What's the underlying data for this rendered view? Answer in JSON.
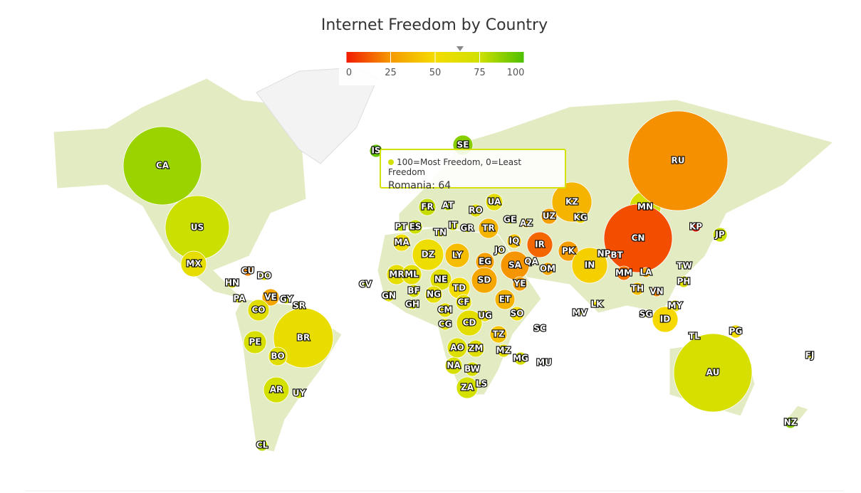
{
  "title": "Internet Freedom by Country",
  "legend": {
    "min": 0,
    "max": 100,
    "ticks": [
      0,
      25,
      50,
      75,
      100
    ],
    "colors": [
      "#f21a00",
      "#f59a00",
      "#f5dc00",
      "#d0e000",
      "#4cbf00"
    ]
  },
  "tooltip": {
    "series": "100=Most Freedom, 0=Least Freedom",
    "label": "Romania: 64",
    "value": 64
  },
  "countries": [
    {
      "code": "CA",
      "value": 85
    },
    {
      "code": "US",
      "value": 76
    },
    {
      "code": "MX",
      "value": 61
    },
    {
      "code": "CU",
      "value": 21
    },
    {
      "code": "DO",
      "value": 70
    },
    {
      "code": "HN",
      "value": 62
    },
    {
      "code": "PA",
      "value": 70
    },
    {
      "code": "VE",
      "value": 30
    },
    {
      "code": "GY",
      "value": 72
    },
    {
      "code": "SR",
      "value": 78
    },
    {
      "code": "CO",
      "value": 64
    },
    {
      "code": "BR",
      "value": 58
    },
    {
      "code": "PE",
      "value": 70
    },
    {
      "code": "BO",
      "value": 65
    },
    {
      "code": "AR",
      "value": 72
    },
    {
      "code": "UY",
      "value": 75
    },
    {
      "code": "CL",
      "value": 80
    },
    {
      "code": "IS",
      "value": 95
    },
    {
      "code": "SE",
      "value": 89
    },
    {
      "code": "FR",
      "value": 77
    },
    {
      "code": "AT",
      "value": 80
    },
    {
      "code": "RO",
      "value": 64
    },
    {
      "code": "UA",
      "value": 60
    },
    {
      "code": "KZ",
      "value": 35
    },
    {
      "code": "MN",
      "value": 70
    },
    {
      "code": "RU",
      "value": 23
    },
    {
      "code": "PT",
      "value": 80
    },
    {
      "code": "ES",
      "value": 76
    },
    {
      "code": "IT",
      "value": 74
    },
    {
      "code": "GR",
      "value": 72
    },
    {
      "code": "TR",
      "value": 35
    },
    {
      "code": "GE",
      "value": 75
    },
    {
      "code": "AZ",
      "value": 38
    },
    {
      "code": "UZ",
      "value": 27
    },
    {
      "code": "KG",
      "value": 54
    },
    {
      "code": "KP",
      "value": 3
    },
    {
      "code": "JP",
      "value": 76
    },
    {
      "code": "MA",
      "value": 54
    },
    {
      "code": "TN",
      "value": 61
    },
    {
      "code": "DZ",
      "value": 55
    },
    {
      "code": "LY",
      "value": 38
    },
    {
      "code": "EG",
      "value": 27
    },
    {
      "code": "JO",
      "value": 47
    },
    {
      "code": "IQ",
      "value": 40
    },
    {
      "code": "IR",
      "value": 15
    },
    {
      "code": "SA",
      "value": 24
    },
    {
      "code": "QA",
      "value": 40
    },
    {
      "code": "OM",
      "value": 31
    },
    {
      "code": "PK",
      "value": 26
    },
    {
      "code": "NP",
      "value": 55
    },
    {
      "code": "BT",
      "value": 60
    },
    {
      "code": "IN",
      "value": 45
    },
    {
      "code": "CN",
      "value": 10
    },
    {
      "code": "TW",
      "value": 79
    },
    {
      "code": "MM",
      "value": 17
    },
    {
      "code": "LA",
      "value": 30
    },
    {
      "code": "TH",
      "value": 39
    },
    {
      "code": "VN",
      "value": 22
    },
    {
      "code": "PH",
      "value": 65
    },
    {
      "code": "MY",
      "value": 58
    },
    {
      "code": "SG",
      "value": 54
    },
    {
      "code": "ID",
      "value": 49
    },
    {
      "code": "LK",
      "value": 52
    },
    {
      "code": "MV",
      "value": 60
    },
    {
      "code": "MR",
      "value": 60
    },
    {
      "code": "ML",
      "value": 62
    },
    {
      "code": "NE",
      "value": 65
    },
    {
      "code": "CV",
      "value": 75
    },
    {
      "code": "GN",
      "value": 68
    },
    {
      "code": "BF",
      "value": 68
    },
    {
      "code": "NG",
      "value": 60
    },
    {
      "code": "TD",
      "value": 50
    },
    {
      "code": "SD",
      "value": 30
    },
    {
      "code": "YE",
      "value": 27
    },
    {
      "code": "ET",
      "value": 34
    },
    {
      "code": "SO",
      "value": 50
    },
    {
      "code": "CF",
      "value": 60
    },
    {
      "code": "CM",
      "value": 62
    },
    {
      "code": "UG",
      "value": 58
    },
    {
      "code": "GH",
      "value": 70
    },
    {
      "code": "CG",
      "value": 65
    },
    {
      "code": "CD",
      "value": 62
    },
    {
      "code": "TZ",
      "value": 40
    },
    {
      "code": "SC",
      "value": 70
    },
    {
      "code": "AO",
      "value": 66
    },
    {
      "code": "ZM",
      "value": 65
    },
    {
      "code": "MZ",
      "value": 62
    },
    {
      "code": "MG",
      "value": 70
    },
    {
      "code": "MU",
      "value": 75
    },
    {
      "code": "NA",
      "value": 70
    },
    {
      "code": "BW",
      "value": 70
    },
    {
      "code": "ZA",
      "value": 72
    },
    {
      "code": "LS",
      "value": 70
    },
    {
      "code": "AU",
      "value": 70
    },
    {
      "code": "TL",
      "value": 70
    },
    {
      "code": "PG",
      "value": 52
    },
    {
      "code": "FJ",
      "value": 60
    },
    {
      "code": "NZ",
      "value": 88
    }
  ]
}
